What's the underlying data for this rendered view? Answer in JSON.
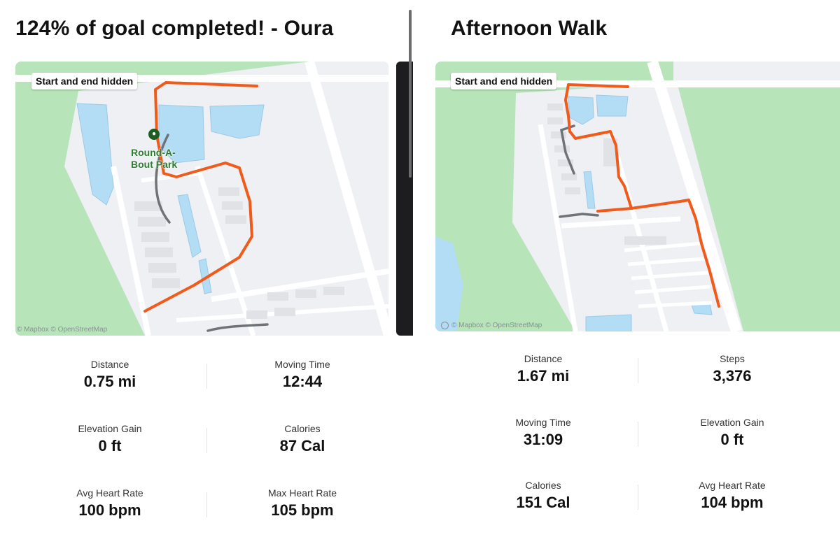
{
  "left": {
    "title": "124% of goal completed! - Oura",
    "map": {
      "badge": "Start and end hidden",
      "attribution": "© Mapbox © OpenStreetMap",
      "park_label_line1": "Round-A-",
      "park_label_line2": "Bout Park",
      "route_color": "#f05a1a",
      "hidden_route_color": "#6f7378"
    },
    "stats": [
      {
        "label": "Distance",
        "value": "0.75 mi"
      },
      {
        "label": "Moving Time",
        "value": "12:44"
      },
      {
        "label": "Elevation Gain",
        "value": "0 ft"
      },
      {
        "label": "Calories",
        "value": "87 Cal"
      },
      {
        "label": "Avg Heart Rate",
        "value": "100 bpm"
      },
      {
        "label": "Max Heart Rate",
        "value": "105 bpm"
      }
    ]
  },
  "right": {
    "title": "Afternoon Walk",
    "map": {
      "badge": "Start and end hidden",
      "attribution": "© Mapbox © OpenStreetMap",
      "route_color": "#f05a1a",
      "hidden_route_color": "#6f7378"
    },
    "stats": [
      {
        "label": "Distance",
        "value": "1.67 mi"
      },
      {
        "label": "Steps",
        "value": "3,376"
      },
      {
        "label": "Moving Time",
        "value": "31:09"
      },
      {
        "label": "Elevation Gain",
        "value": "0 ft"
      },
      {
        "label": "Calories",
        "value": "151 Cal"
      },
      {
        "label": "Avg Heart Rate",
        "value": "104 bpm"
      }
    ]
  },
  "colors": {
    "park_green": "#b7e4b9",
    "water_blue": "#b3dcf5",
    "road_white": "#ffffff",
    "land_gray": "#eef0f3"
  }
}
